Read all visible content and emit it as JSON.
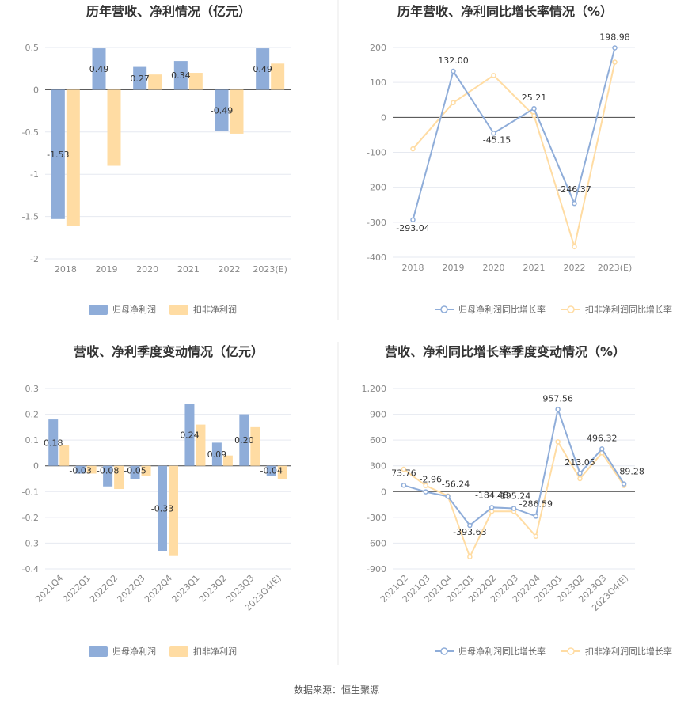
{
  "colors": {
    "primary": "#8fadd9",
    "secondary": "#ffdca3",
    "text": "#333333",
    "tick": "#888888"
  },
  "source": "数据来源：恒生聚源",
  "chart_data": [
    {
      "type": "bar",
      "title": "历年营收、净利情况（亿元）",
      "categories": [
        "2018",
        "2019",
        "2020",
        "2021",
        "2022",
        "2023(E)"
      ],
      "ylim": [
        -2,
        0.5
      ],
      "yticks": [
        "0.5",
        "0",
        "-0.5",
        "-1",
        "-1.5",
        "-2"
      ],
      "ytick_values": [
        0.5,
        0,
        -0.5,
        -1,
        -1.5,
        -2
      ],
      "series": [
        {
          "name": "归母净利润",
          "values": [
            -1.53,
            0.49,
            0.27,
            0.34,
            -0.49,
            0.49
          ],
          "labels": [
            "-1.53",
            "0.49",
            "0.27",
            "0.34",
            "-0.49",
            "0.49"
          ]
        },
        {
          "name": "扣非净利润",
          "values": [
            -1.61,
            -0.9,
            0.18,
            0.2,
            -0.52,
            0.31
          ]
        }
      ],
      "grid": true,
      "legend": "bottom"
    },
    {
      "type": "line",
      "title": "历年营收、净利同比增长率情况（%）",
      "categories": [
        "2018",
        "2019",
        "2020",
        "2021",
        "2022",
        "2023(E)"
      ],
      "ylim": [
        -400,
        200
      ],
      "yticks": [
        "200",
        "100",
        "0",
        "-100",
        "-200",
        "-300",
        "-400"
      ],
      "ytick_values": [
        200,
        100,
        0,
        -100,
        -200,
        -300,
        -400
      ],
      "series": [
        {
          "name": "归母净利润同比增长率",
          "values": [
            -293.04,
            132.0,
            -45.15,
            25.21,
            -246.37,
            198.98
          ],
          "labels": [
            "-293.04",
            "132.00",
            "-45.15",
            "25.21",
            "-246.37",
            "198.98"
          ]
        },
        {
          "name": "扣非净利润同比增长率",
          "values": [
            -90,
            42,
            120,
            5,
            -370,
            158
          ]
        }
      ],
      "grid": true,
      "legend": "bottom"
    },
    {
      "type": "bar",
      "title": "营收、净利季度变动情况（亿元）",
      "categories": [
        "2021Q4",
        "2022Q1",
        "2022Q2",
        "2022Q3",
        "2022Q4",
        "2023Q1",
        "2023Q2",
        "2023Q3",
        "2023Q4(E)"
      ],
      "ylim": [
        -0.4,
        0.3
      ],
      "yticks": [
        "0.3",
        "0.2",
        "0.1",
        "0",
        "-0.1",
        "-0.2",
        "-0.3",
        "-0.4"
      ],
      "ytick_values": [
        0.3,
        0.2,
        0.1,
        0,
        -0.1,
        -0.2,
        -0.3,
        -0.4
      ],
      "series": [
        {
          "name": "归母净利润",
          "values": [
            0.18,
            -0.03,
            -0.08,
            -0.05,
            -0.33,
            0.24,
            0.09,
            0.2,
            -0.04
          ],
          "labels": [
            "0.18",
            "-0.03",
            "-0.08",
            "-0.05",
            "-0.33",
            "0.24",
            "0.09",
            "0.20",
            "-0.04"
          ]
        },
        {
          "name": "扣非净利润",
          "values": [
            0.08,
            -0.03,
            -0.09,
            -0.04,
            -0.35,
            0.16,
            0.04,
            0.15,
            -0.05
          ]
        }
      ],
      "grid": true,
      "legend": "bottom"
    },
    {
      "type": "line",
      "title": "营收、净利同比增长率季度变动情况（%）",
      "categories": [
        "2021Q2",
        "2021Q3",
        "2021Q4",
        "2022Q1",
        "2022Q2",
        "2022Q3",
        "2022Q4",
        "2023Q1",
        "2023Q2",
        "2023Q3",
        "2023Q4(E)"
      ],
      "ylim": [
        -900,
        1200
      ],
      "yticks": [
        "1,200",
        "900",
        "600",
        "300",
        "0",
        "-300",
        "-600",
        "-900"
      ],
      "ytick_values": [
        1200,
        900,
        600,
        300,
        0,
        -300,
        -600,
        -900
      ],
      "series": [
        {
          "name": "归母净利润同比增长率",
          "values": [
            73.76,
            -2.96,
            -56.24,
            -393.63,
            -184.48,
            -195.24,
            -286.59,
            957.56,
            213.05,
            496.32,
            89.28
          ],
          "labels": [
            "73.76",
            "-2.96",
            "-56.24",
            "-393.63",
            "-184.48",
            "-195.24",
            "-286.59",
            "957.56",
            "213.05",
            "496.32",
            "89.28"
          ]
        },
        {
          "name": "扣非净利润同比增长率",
          "values": [
            260,
            70,
            -50,
            -760,
            -230,
            -230,
            -520,
            580,
            150,
            450,
            70
          ]
        }
      ],
      "grid": true,
      "legend": "bottom"
    }
  ]
}
